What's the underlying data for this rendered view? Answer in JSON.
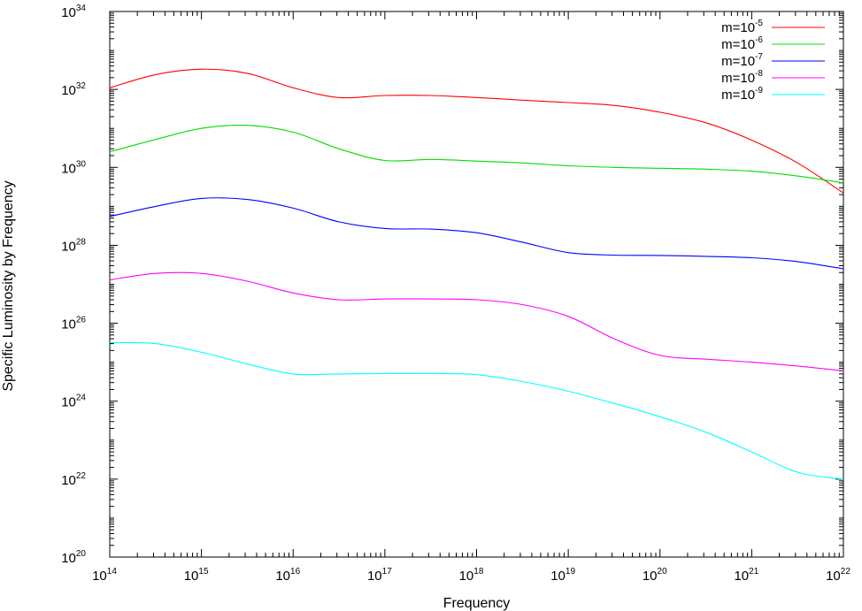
{
  "chart_data": {
    "type": "line",
    "xlabel": "Frequency",
    "ylabel": "Specific Luminosity by Frequency",
    "x_scale": "log",
    "y_scale": "log",
    "xlim": [
      100000000000000.0,
      1e+22
    ],
    "ylim": [
      1e+20,
      1e+34
    ],
    "x_ticks": [
      {
        "base": "10",
        "exp": "14",
        "value": 100000000000000.0
      },
      {
        "base": "10",
        "exp": "15",
        "value": 1000000000000000.0
      },
      {
        "base": "10",
        "exp": "16",
        "value": 1e+16
      },
      {
        "base": "10",
        "exp": "17",
        "value": 1e+17
      },
      {
        "base": "10",
        "exp": "18",
        "value": 1e+18
      },
      {
        "base": "10",
        "exp": "19",
        "value": 1e+19
      },
      {
        "base": "10",
        "exp": "20",
        "value": 1e+20
      },
      {
        "base": "10",
        "exp": "21",
        "value": 1e+21
      },
      {
        "base": "10",
        "exp": "22",
        "value": 1e+22
      }
    ],
    "y_ticks": [
      {
        "base": "10",
        "exp": "20",
        "value": 1e+20
      },
      {
        "base": "10",
        "exp": "22",
        "value": 1e+22
      },
      {
        "base": "10",
        "exp": "24",
        "value": 1e+24
      },
      {
        "base": "10",
        "exp": "26",
        "value": 1e+26
      },
      {
        "base": "10",
        "exp": "28",
        "value": 1e+28
      },
      {
        "base": "10",
        "exp": "30",
        "value": 1e+30
      },
      {
        "base": "10",
        "exp": "32",
        "value": 1e+32
      },
      {
        "base": "10",
        "exp": "34",
        "value": 1e+34
      }
    ],
    "legend_position": "top-right",
    "grid": false,
    "x": [
      100000000000000.0,
      316000000000000.0,
      1000000000000000.0,
      3160000000000000.0,
      1e+16,
      3.16e+16,
      1e+17,
      3.16e+17,
      1e+18,
      3.16e+18,
      1e+19,
      3.16e+19,
      1e+20,
      3.16e+20,
      1e+21,
      3.16e+21,
      1e+22
    ],
    "series": [
      {
        "name": "m=10-5",
        "label_base": "m=10",
        "label_exp": "-5",
        "color": "#ff0000",
        "y": [
          1.1e+32,
          2.4e+32,
          3.3e+32,
          2.6e+32,
          1.1e+32,
          6.2e+31,
          7e+31,
          7e+31,
          6.2e+31,
          5.3e+31,
          4.6e+31,
          3.9e+31,
          2.6e+31,
          1.4e+31,
          5e+30,
          1.3e+30,
          2.2e+29
        ]
      },
      {
        "name": "m=10-6",
        "label_base": "m=10",
        "label_exp": "-6",
        "color": "#00dd00",
        "y": [
          2.5e+30,
          5.2e+30,
          1e+31,
          1.2e+31,
          8e+30,
          3e+30,
          1.5e+30,
          1.6e+30,
          1.45e+30,
          1.3e+30,
          1.1e+30,
          1e+30,
          9.5e+29,
          9e+29,
          8e+29,
          6e+29,
          4e+29
        ]
      },
      {
        "name": "m=10-7",
        "label_base": "m=10",
        "label_exp": "-7",
        "color": "#0000ff",
        "y": [
          5.5e+28,
          1e+29,
          1.6e+29,
          1.5e+29,
          9e+28,
          4e+28,
          2.7e+28,
          2.6e+28,
          2.1e+28,
          1.2e+28,
          6.5e+27,
          5.6e+27,
          5.5e+27,
          5.2e+27,
          4.8e+27,
          3.8e+27,
          2.5e+27
        ]
      },
      {
        "name": "m=10-8",
        "label_base": "m=10",
        "label_exp": "-8",
        "color": "#ff00ff",
        "y": [
          1.3e+27,
          1.9e+27,
          1.9e+27,
          1.2e+27,
          6e+26,
          4e+26,
          4.2e+26,
          4.2e+26,
          4e+26,
          3e+26,
          1.5e+26,
          4e+25,
          1.5e+25,
          1.2e+25,
          1e+25,
          8e+24,
          6e+24
        ]
      },
      {
        "name": "m=10-9",
        "label_base": "m=10",
        "label_exp": "-9",
        "color": "#00ffff",
        "y": [
          3.2e+25,
          3e+25,
          1.8e+25,
          9e+24,
          5e+24,
          5e+24,
          5.1e+24,
          5.1e+24,
          4.8e+24,
          3.2e+24,
          1.8e+24,
          8.8e+23,
          4e+23,
          1.6e+23,
          5e+22,
          1.5e+22,
          1e+22
        ]
      }
    ]
  }
}
